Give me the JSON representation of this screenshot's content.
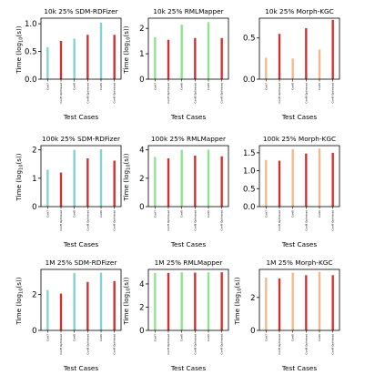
{
  "figure": {
    "colors": {
      "baseline": {
        "SDM-RDFizer": "#86d2cf",
        "RMLMapper": "#90e48f",
        "Morph-KGC": "#f3b98c"
      },
      "optimised": "#d23131"
    }
  },
  "chart_data": [
    {
      "type": "bar",
      "title": "10k 25% SDM-RDFizer",
      "engine": "SDM-RDFizer",
      "ylabel": "Time (log10(s))",
      "xlabel": "Test Cases",
      "categories": [
        "Conf7",
        "Conf7 Optimised",
        "Conf8",
        "Conf8 Optimised",
        "Conf9",
        "Conf9 Optimised"
      ],
      "values": [
        0.58,
        0.69,
        0.73,
        0.8,
        1.02,
        0.8
      ],
      "ylim": [
        0,
        1.1
      ],
      "yticks": [
        "0.0",
        "0.5",
        "1.0"
      ],
      "ytick_values": [
        0,
        0.5,
        1.0
      ]
    },
    {
      "type": "bar",
      "title": "10k 25% RMLMapper",
      "engine": "RMLMapper",
      "ylabel": "Time (log10(s))",
      "xlabel": "Test Cases",
      "categories": [
        "Conf7",
        "Conf7 Optimised",
        "Conf8",
        "Conf8 Optimised",
        "Conf9",
        "Conf9 Optimised"
      ],
      "values": [
        1.65,
        1.55,
        2.15,
        1.62,
        2.25,
        1.62
      ],
      "ylim": [
        0,
        2.4
      ],
      "yticks": [
        "0",
        "1",
        "2"
      ],
      "ytick_values": [
        0,
        1,
        2
      ]
    },
    {
      "type": "bar",
      "title": "10k 25% Morph-KGC",
      "engine": "Morph-KGC",
      "ylabel": "",
      "xlabel": "Test Cases",
      "categories": [
        "Conf7",
        "Conf7 Optimised",
        "Conf8",
        "Conf8 Optimised",
        "Conf9",
        "Conf9 Optimised"
      ],
      "values": [
        0.26,
        0.55,
        0.25,
        0.62,
        0.36,
        0.72
      ],
      "ylim": [
        0,
        0.74
      ],
      "yticks": [
        "0.0",
        "0.5"
      ],
      "ytick_values": [
        0,
        0.5
      ]
    },
    {
      "type": "bar",
      "title": "100k 25% SDM-RDFizer",
      "engine": "SDM-RDFizer",
      "ylabel": "Time (log10(s))",
      "xlabel": "Test Cases",
      "categories": [
        "Conf7",
        "Conf7 Optimised",
        "Conf8",
        "Conf8 Optimised",
        "Conf9",
        "Conf9 Optimised"
      ],
      "values": [
        1.3,
        1.2,
        2.0,
        1.7,
        2.02,
        1.62
      ],
      "ylim": [
        0,
        2.15
      ],
      "yticks": [
        "0",
        "1",
        "2"
      ],
      "ytick_values": [
        0,
        1,
        2
      ]
    },
    {
      "type": "bar",
      "title": "100k 25% RMLMapper",
      "engine": "RMLMapper",
      "ylabel": "Time (log10(s))",
      "xlabel": "Test Cases",
      "categories": [
        "Conf7",
        "Conf7 Optimised",
        "Conf8",
        "Conf8 Optimised",
        "Conf9",
        "Conf9 Optimised"
      ],
      "values": [
        3.5,
        3.4,
        4.0,
        3.6,
        4.02,
        3.55
      ],
      "ylim": [
        0,
        4.3
      ],
      "yticks": [
        "0",
        "2",
        "4"
      ],
      "ytick_values": [
        0,
        2,
        4
      ]
    },
    {
      "type": "bar",
      "title": "100k 25% Morph-KGC",
      "engine": "Morph-KGC",
      "ylabel": "",
      "xlabel": "Test Cases",
      "categories": [
        "Conf7",
        "Conf7 Optimised",
        "Conf8",
        "Conf8 Optimised",
        "Conf9",
        "Conf9 Optimised"
      ],
      "values": [
        1.3,
        1.28,
        1.6,
        1.48,
        1.62,
        1.5
      ],
      "ylim": [
        0,
        1.7
      ],
      "yticks": [
        "0.0",
        "0.5",
        "1.0",
        "1.5"
      ],
      "ytick_values": [
        0,
        0.5,
        1.0,
        1.5
      ]
    },
    {
      "type": "bar",
      "title": "1M 25% SDM-RDFizer",
      "engine": "SDM-RDFizer",
      "ylabel": "Time (log10(s))",
      "xlabel": "Test Cases",
      "categories": [
        "Conf7",
        "Conf7 Optimised",
        "Conf8",
        "Conf8 Optimised",
        "Conf9",
        "Conf9 Optimised"
      ],
      "values": [
        2.25,
        2.05,
        3.2,
        2.7,
        3.22,
        2.75
      ],
      "ylim": [
        0,
        3.4
      ],
      "yticks": [
        "0",
        "2"
      ],
      "ytick_values": [
        0,
        2
      ]
    },
    {
      "type": "bar",
      "title": "1M 25% RMLMapper",
      "engine": "RMLMapper",
      "ylabel": "Time (log10(s))",
      "xlabel": "Test Cases",
      "categories": [
        "Conf7",
        "Conf7 Optimised",
        "Conf8",
        "Conf8 Optimised",
        "Conf9",
        "Conf9 Optimised"
      ],
      "values": [
        4.95,
        4.95,
        5.0,
        4.97,
        5.0,
        5.0
      ],
      "ylim": [
        0,
        5.25
      ],
      "yticks": [
        "0",
        "2",
        "4"
      ],
      "ytick_values": [
        0,
        2,
        4
      ]
    },
    {
      "type": "bar",
      "title": "1M 25% Morph-KGC",
      "engine": "Morph-KGC",
      "ylabel": "Time (log10(s))",
      "xlabel": "Test Cases",
      "categories": [
        "Conf7",
        "Conf7 Optimised",
        "Conf8",
        "Conf8 Optimised",
        "Conf9",
        "Conf9 Optimised"
      ],
      "values": [
        3.2,
        3.15,
        3.5,
        3.35,
        3.55,
        3.35
      ],
      "ylim": [
        0,
        3.7
      ],
      "yticks": [
        "0",
        "2"
      ],
      "ytick_values": [
        0,
        2
      ]
    }
  ]
}
